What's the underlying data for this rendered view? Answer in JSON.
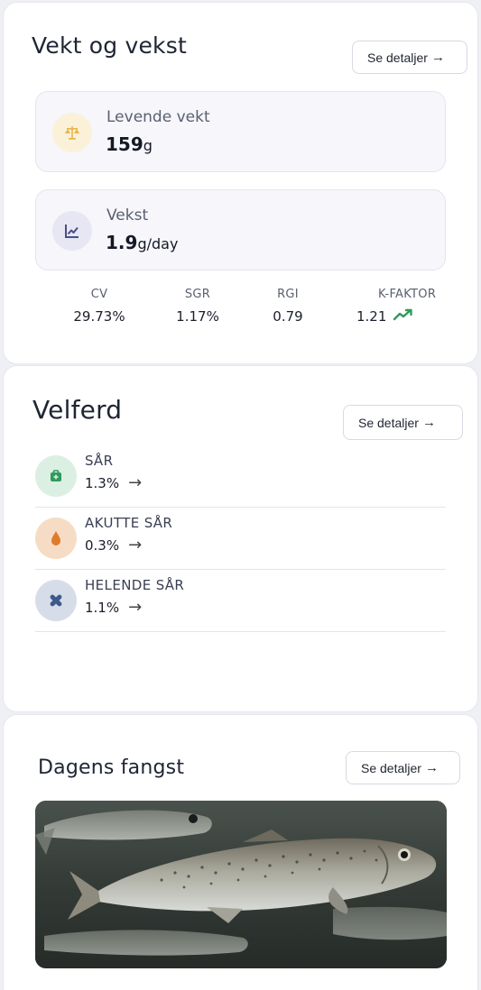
{
  "weight_card": {
    "title": "Vekt og vekst",
    "details_label": "Se detaljer",
    "live_weight": {
      "label": "Levende vekt",
      "value": "159",
      "unit": "g"
    },
    "growth": {
      "label": "Vekst",
      "value": "1.9",
      "unit": "g/day"
    },
    "kpis": [
      {
        "label": "CV",
        "value": "29.73%"
      },
      {
        "label": "SGR",
        "value": "1.17%"
      },
      {
        "label": "RGI",
        "value": "0.79"
      },
      {
        "label": "K-FAKTOR",
        "value": "1.21",
        "trend": "up"
      }
    ]
  },
  "welfare_card": {
    "title": "Velferd",
    "details_label": "Se detaljer",
    "items": [
      {
        "label": "SÅR",
        "value": "1.3%",
        "icon": "bandage-icon",
        "color": "#2f9a5c"
      },
      {
        "label": "AKUTTE SÅR",
        "value": "0.3%",
        "icon": "drop-icon",
        "color": "#e07b2b"
      },
      {
        "label": "HELENDE SÅR",
        "value": "1.1%",
        "icon": "healing-cross-icon",
        "color": "#3d5a8a"
      }
    ]
  },
  "catch_card": {
    "title": "Dagens fangst",
    "details_label": "Se detaljer"
  },
  "colors": {
    "trend_up": "#2f9a5c",
    "weight_icon_bg": "#fbf1d9",
    "weight_icon": "#e8b54a",
    "growth_icon_bg": "#e6e7f3",
    "growth_icon": "#4a4f86"
  }
}
